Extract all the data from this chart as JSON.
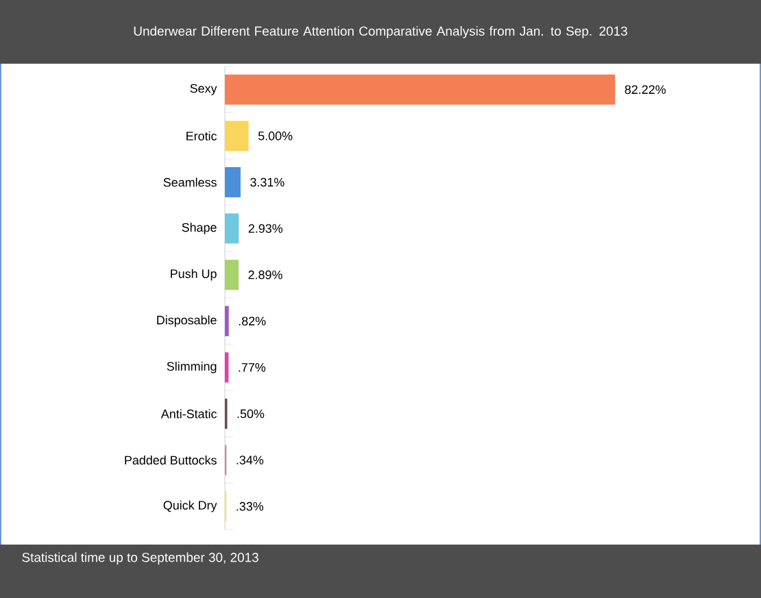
{
  "chart_data": {
    "type": "bar",
    "orientation": "horizontal",
    "title": "Underwear Different Feature Attention Comparative Analysis from Jan. to Sep. 2013",
    "categories": [
      "Sexy",
      "Erotic",
      "Seamless",
      "Shape",
      "Push Up",
      "Disposable",
      "Slimming",
      "Anti-Static",
      "Padded Buttocks",
      "Quick Dry"
    ],
    "values": [
      82.22,
      5.0,
      3.31,
      2.93,
      2.89,
      0.82,
      0.77,
      0.5,
      0.34,
      0.33
    ],
    "value_labels": [
      "82.22%",
      "5.00%",
      "3.31%",
      "2.93%",
      "2.89%",
      ".82%",
      ".77%",
      ".50%",
      ".34%",
      ".33%"
    ],
    "colors": [
      "#f47f55",
      "#fad55c",
      "#4a8fd9",
      "#6ec9e0",
      "#a6d36a",
      "#9b59c8",
      "#e040b0",
      "#6b4a4a",
      "#c89090",
      "#e8e870"
    ],
    "annotations": [
      "Statistical time up to September 30, 2013"
    ]
  }
}
